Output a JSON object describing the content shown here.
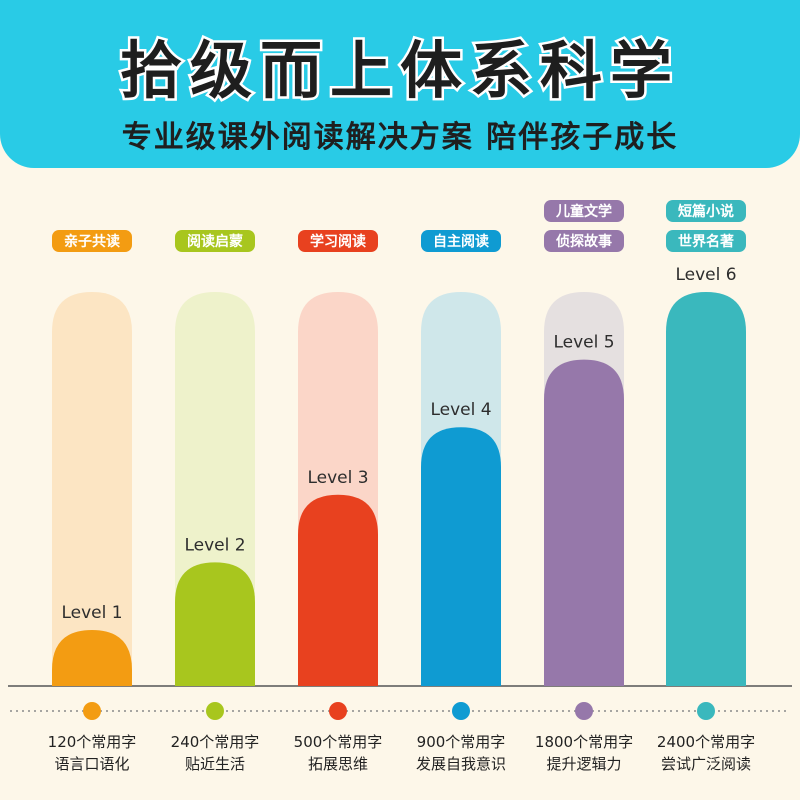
{
  "header": {
    "title": "拾级而上体系科学",
    "subtitle": "专业级课外阅读解决方案 陪伴孩子成长"
  },
  "chart_data": {
    "type": "bar",
    "categories": [
      "Level 1",
      "Level 2",
      "Level 3",
      "Level 4",
      "Level 5",
      "Level 6"
    ],
    "values": [
      1,
      2,
      3,
      4,
      5,
      6
    ],
    "ylim": [
      0,
      6
    ],
    "grid": false,
    "tags": [
      [
        "亲子共读"
      ],
      [
        "阅读启蒙"
      ],
      [
        "学习阅读"
      ],
      [
        "自主阅读"
      ],
      [
        "儿童文学",
        "侦探故事"
      ],
      [
        "短篇小说",
        "世界名著"
      ]
    ],
    "captions": [
      [
        "120个常用字",
        "语言口语化"
      ],
      [
        "240个常用字",
        "贴近生活"
      ],
      [
        "500个常用字",
        "拓展思维"
      ],
      [
        "900个常用字",
        "发展自我意识"
      ],
      [
        "1800个常用字",
        "提升逻辑力"
      ],
      [
        "2400个常用字",
        "尝试广泛阅读"
      ]
    ],
    "colors": [
      "#f39c12",
      "#a8c61e",
      "#e8411f",
      "#0f9bd2",
      "#9678aa",
      "#3ab8bd"
    ],
    "light_colors": [
      "#fce5c3",
      "#eef2cb",
      "#fbd6c8",
      "#cfe7ea",
      "#e5e0e0",
      "#d9eff0"
    ]
  }
}
